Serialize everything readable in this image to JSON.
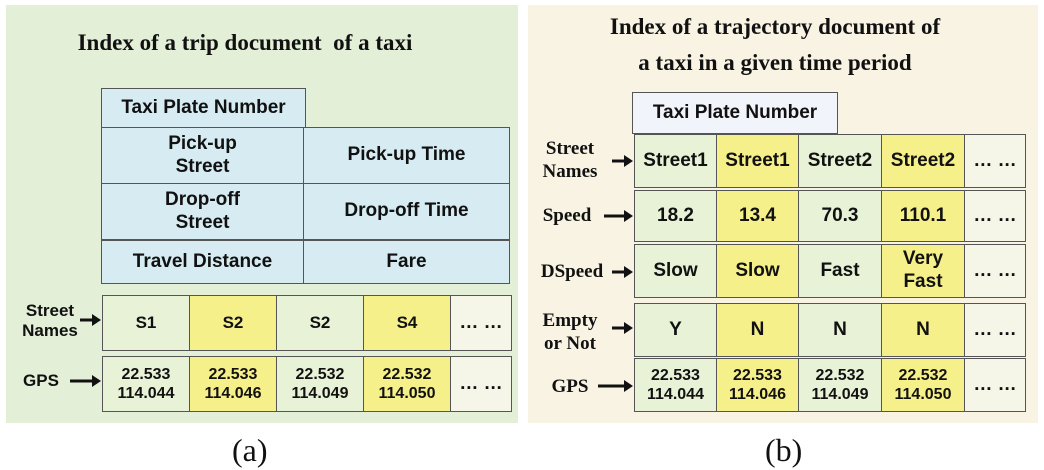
{
  "panel_a": {
    "title": "Index of a trip document  of a taxi",
    "header": "Taxi Plate Number",
    "fields": [
      {
        "left": "Pick-up\nStreet",
        "right": "Pick-up Time"
      },
      {
        "left": "Drop-off\nStreet",
        "right": "Drop-off Time"
      },
      {
        "left": "Travel Distance",
        "right": "Fare"
      }
    ],
    "rows": [
      {
        "label": "Street\nNames",
        "cells": [
          "S1",
          "S2",
          "S2",
          "S4",
          "… …"
        ]
      },
      {
        "label": "GPS",
        "cells": [
          "22.533\n114.044",
          "22.533\n114.046",
          "22.532\n114.049",
          "22.532\n114.050",
          "… …"
        ]
      }
    ],
    "caption": "(a)"
  },
  "panel_b": {
    "title_line1": "Index of a trajectory document of",
    "title_line2": "a taxi in a given time period",
    "header": "Taxi Plate Number",
    "rows": [
      {
        "label": "Street\nNames",
        "cells": [
          "Street1",
          "Street1",
          "Street2",
          "Street2",
          "… …"
        ]
      },
      {
        "label": "Speed",
        "cells": [
          "18.2",
          "13.4",
          "70.3",
          "110.1",
          "… …"
        ]
      },
      {
        "label": "DSpeed",
        "cells": [
          "Slow",
          "Slow",
          "Fast",
          "Very\nFast",
          "… …"
        ]
      },
      {
        "label": "Empty\nor Not",
        "cells": [
          "Y",
          "N",
          "N",
          "N",
          "… …"
        ]
      },
      {
        "label": "GPS",
        "cells": [
          "22.533\n114.044",
          "22.533\n114.046",
          "22.532\n114.049",
          "22.532\n114.050",
          "… …"
        ]
      }
    ],
    "caption": "(b)"
  },
  "colors": {
    "panel_a_bg": "#e3efd6",
    "panel_b_bg": "#f9f3e3",
    "field_blue": "#d6ecf2",
    "highlight_yellow": "#f6f08a",
    "cell_green": "#e8f2d7"
  }
}
